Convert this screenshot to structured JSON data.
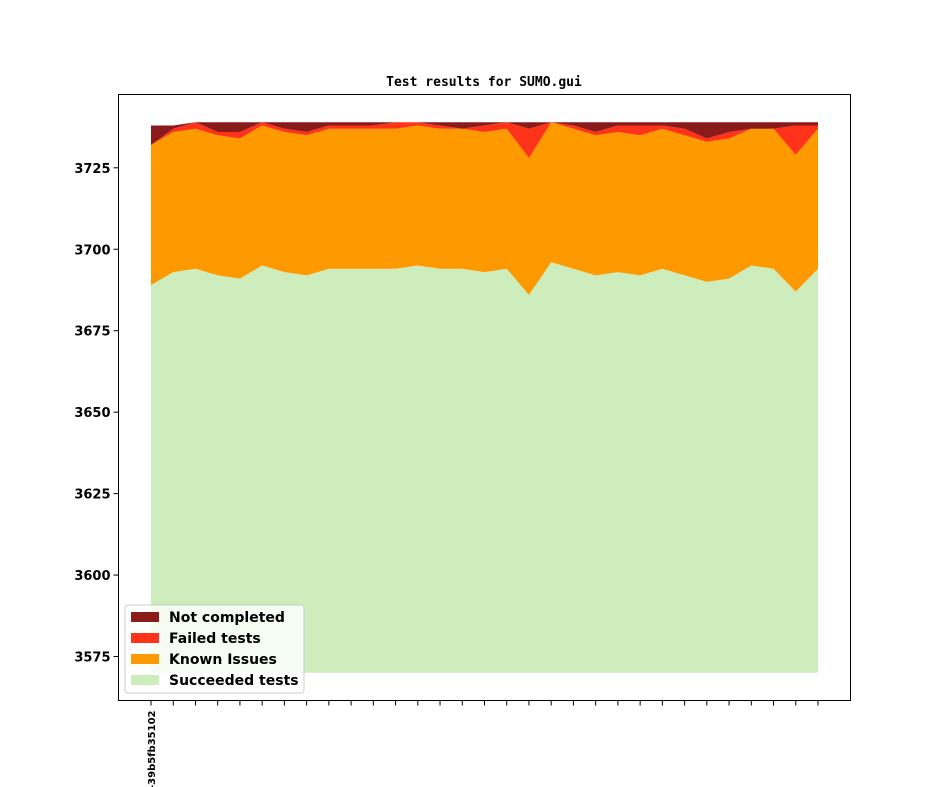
{
  "chart_data": {
    "type": "area",
    "stacked": true,
    "title": "Test results for SUMO.gui",
    "xlabel": "",
    "ylabel": "",
    "ylim": [
      3561.5,
      3747.5
    ],
    "baseline": 3570,
    "yticks": [
      3575,
      3600,
      3625,
      3650,
      3675,
      3700,
      3725
    ],
    "xtick_labels": [
      "-39b5fb35102"
    ],
    "num_points": 31,
    "legend_position": "lower-left",
    "grid": false,
    "stack_tops": [
      {
        "name": "Succeeded tests",
        "color": "#ceedbd",
        "values": [
          3689,
          3693,
          3694,
          3692,
          3691,
          3695,
          3693,
          3692,
          3694,
          3694,
          3694,
          3694,
          3695,
          3694,
          3694,
          3693,
          3694,
          3686,
          3696,
          3694,
          3692,
          3693,
          3692,
          3694,
          3692,
          3690,
          3691,
          3695,
          3694,
          3687,
          3694
        ]
      },
      {
        "name": "Known Issues",
        "color": "#fe9900",
        "values": [
          3732,
          3736,
          3737,
          3735,
          3734,
          3738,
          3736,
          3735,
          3737,
          3737,
          3737,
          3737,
          3738,
          3737,
          3737,
          3736,
          3737,
          3728,
          3739,
          3737,
          3735,
          3736,
          3735,
          3737,
          3735,
          3733,
          3734,
          3737,
          3737,
          3729,
          3737
        ]
      },
      {
        "name": "Failed tests",
        "color": "#ff331a",
        "values": [
          3732,
          3737,
          3739,
          3736,
          3736,
          3739,
          3737,
          3736,
          3738,
          3738,
          3738,
          3739,
          3739,
          3738,
          3737,
          3738,
          3739,
          3737,
          3739,
          3738,
          3736,
          3738,
          3738,
          3738,
          3737,
          3734,
          3736,
          3737,
          3737,
          3738,
          3738
        ]
      },
      {
        "name": "Not completed",
        "color": "#8b1a1a",
        "values": [
          3738,
          3738,
          3739,
          3739,
          3739,
          3739,
          3739,
          3739,
          3739,
          3739,
          3739,
          3739,
          3739,
          3739,
          3739,
          3739,
          3739,
          3739,
          3739,
          3739,
          3739,
          3739,
          3739,
          3739,
          3739,
          3739,
          3739,
          3739,
          3739,
          3739,
          3739
        ]
      }
    ],
    "legend": [
      "Not completed",
      "Failed tests",
      "Known Issues",
      "Succeeded tests"
    ]
  }
}
